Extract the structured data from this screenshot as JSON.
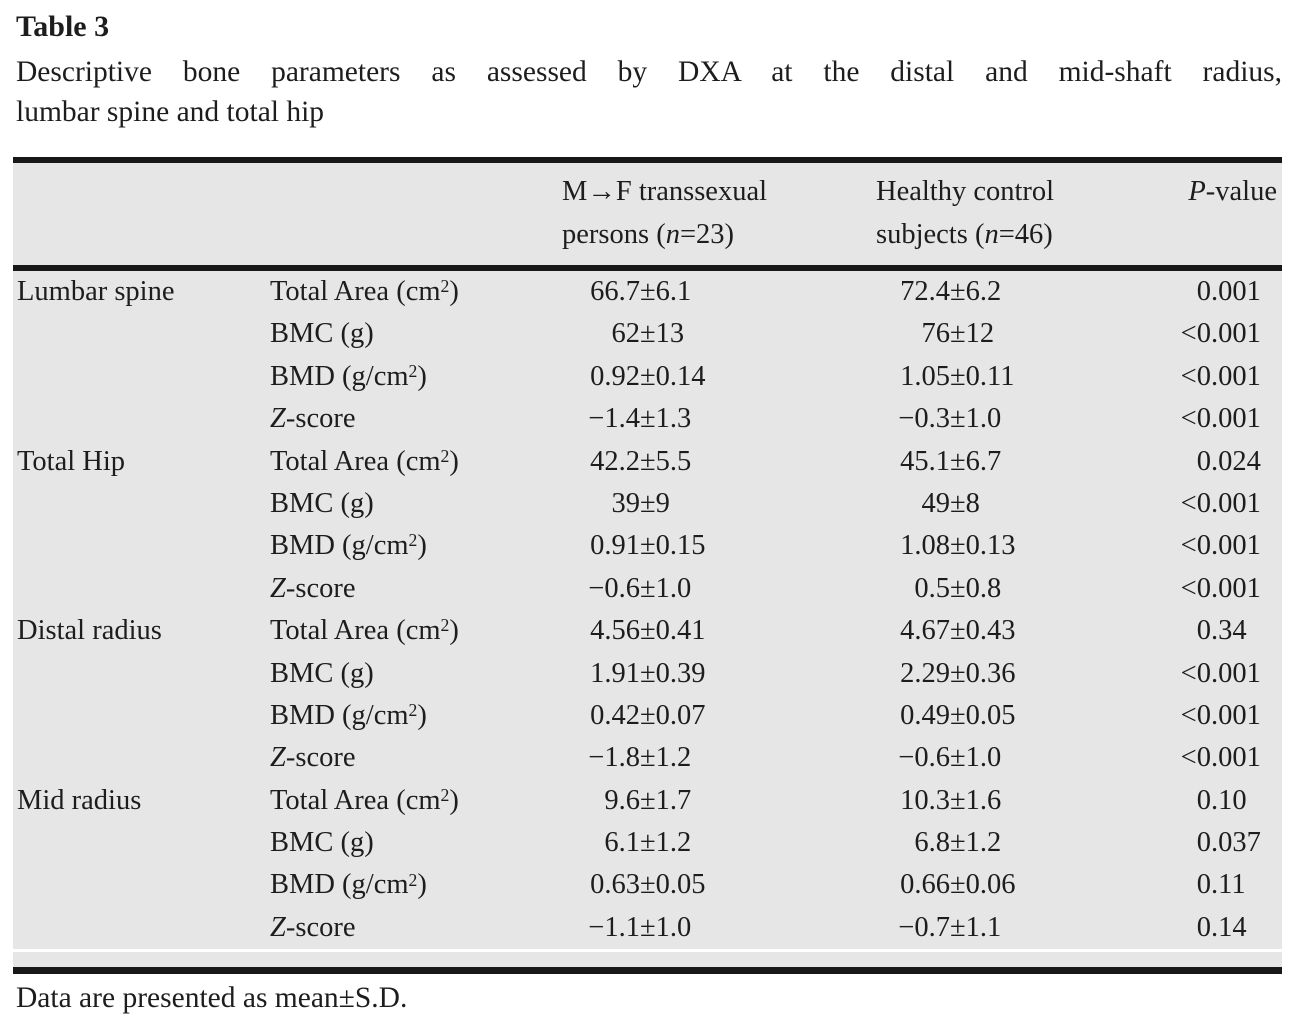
{
  "page": {
    "title": "Table 3",
    "caption_line1": "Descriptive bone parameters as assessed by DXA at the distal and mid-shaft radius,",
    "caption_line2": "lumbar spine and total hip",
    "footnote": "Data are presented as mean±S.D."
  },
  "colors": {
    "table_bg": "#e6e6e7",
    "rule": "#181818",
    "text": "#1d1d1d"
  },
  "table": {
    "header": {
      "group1_line1": "M→F transsexual",
      "group1_line2_pre": "persons (",
      "group1_line2_italic": "n",
      "group1_line2_post": "=23)",
      "group2_line1": "Healthy control",
      "group2_line2_pre": "subjects (",
      "group2_line2_italic": "n",
      "group2_line2_post": "=46)",
      "pvalue_italic": "P",
      "pvalue_rest": "-value"
    },
    "rows": [
      {
        "site": "Lumbar spine",
        "param": {
          "pre": "Total Area (cm",
          "sup": "2",
          "post": ")"
        },
        "v1": "66.7±6.1",
        "v2": "72.4±6.2",
        "p": "0.001"
      },
      {
        "site": "",
        "param": {
          "text": "BMC (g)"
        },
        "v1": "62±13",
        "v2": "76±12",
        "p": "<0.001"
      },
      {
        "site": "",
        "param": {
          "pre": "BMD (g/cm",
          "sup": "2",
          "post": ")"
        },
        "v1": "0.92±0.14",
        "v2": "1.05±0.11",
        "p": "<0.001"
      },
      {
        "site": "",
        "param": {
          "it": "Z",
          "rest": "-score"
        },
        "v1": "−1.4±1.3",
        "v2": "−0.3±1.0",
        "p": "<0.001"
      },
      {
        "site": "Total Hip",
        "param": {
          "pre": "Total Area (cm",
          "sup": "2",
          "post": ")"
        },
        "v1": "42.2±5.5",
        "v2": "45.1±6.7",
        "p": "0.024"
      },
      {
        "site": "",
        "param": {
          "text": "BMC (g)"
        },
        "v1": "39±9",
        "v2": "49±8",
        "p": "<0.001"
      },
      {
        "site": "",
        "param": {
          "pre": "BMD (g/cm",
          "sup": "2",
          "post": ")"
        },
        "v1": "0.91±0.15",
        "v2": "1.08±0.13",
        "p": "<0.001"
      },
      {
        "site": "",
        "param": {
          "it": "Z",
          "rest": "-score"
        },
        "v1": "−0.6±1.0",
        "v2": "0.5±0.8",
        "p": "<0.001"
      },
      {
        "site": "Distal radius",
        "param": {
          "pre": "Total Area (cm",
          "sup": "2",
          "post": ")"
        },
        "v1": "4.56±0.41",
        "v2": "4.67±0.43",
        "p": "0.34"
      },
      {
        "site": "",
        "param": {
          "text": "BMC (g)"
        },
        "v1": "1.91±0.39",
        "v2": "2.29±0.36",
        "p": "<0.001"
      },
      {
        "site": "",
        "param": {
          "pre": "BMD (g/cm",
          "sup": "2",
          "post": ")"
        },
        "v1": "0.42±0.07",
        "v2": "0.49±0.05",
        "p": "<0.001"
      },
      {
        "site": "",
        "param": {
          "it": "Z",
          "rest": "-score"
        },
        "v1": "−1.8±1.2",
        "v2": "−0.6±1.0",
        "p": "<0.001"
      },
      {
        "site": "Mid radius",
        "param": {
          "pre": "Total Area (cm",
          "sup": "2",
          "post": ")"
        },
        "v1": "9.6±1.7",
        "v2": "10.3±1.6",
        "p": "0.10"
      },
      {
        "site": "",
        "param": {
          "text": "BMC (g)"
        },
        "v1": "6.1±1.2",
        "v2": "6.8±1.2",
        "p": "0.037"
      },
      {
        "site": "",
        "param": {
          "pre": "BMD (g/cm",
          "sup": "2",
          "post": ")"
        },
        "v1": "0.63±0.05",
        "v2": "0.66±0.06",
        "p": "0.11"
      },
      {
        "site": "",
        "param": {
          "it": "Z",
          "rest": "-score"
        },
        "v1": "−1.1±1.0",
        "v2": "−0.7±1.1",
        "p": "0.14"
      }
    ]
  }
}
